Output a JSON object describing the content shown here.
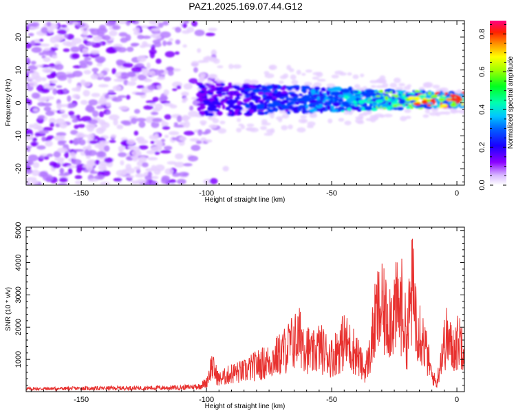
{
  "page_title": "PAZ1.2025.169.07.44.G12",
  "colors": {
    "snr_line": "#e8312f",
    "spectrogram_palette": [
      "#ffffff",
      "#e6d0ff",
      "#b57bff",
      "#7f00ff",
      "#2a00ff",
      "#0040ff",
      "#00b0ff",
      "#00ffc8",
      "#00ff40",
      "#80ff00",
      "#ffff00",
      "#ffa000",
      "#ff3000",
      "#ff0060",
      "#ff0090"
    ]
  },
  "chart_data": [
    {
      "type": "heatmap",
      "title": "PAZ1.2025.169.07.44.G12",
      "xlabel": "Height of straight line (km)",
      "ylabel": "Frequency (Hz)",
      "xlim": [
        -172,
        3
      ],
      "ylim": [
        -25,
        25
      ],
      "x_ticks": [
        "-150",
        "-100",
        "-50",
        "0"
      ],
      "y_ticks": [
        "-20",
        "-10",
        "0",
        "10",
        "20"
      ],
      "colorbar": {
        "label": "Normalized spectral amplitude",
        "range": [
          0,
          0.87
        ],
        "ticks": [
          "0.0",
          "0.2",
          "0.4",
          "0.6",
          "0.8"
        ]
      },
      "features": {
        "signal_band_center_hz": 1,
        "signal_band_halfwidth_hz": [
          5,
          2
        ],
        "signal_from_km": -103,
        "noise_region_to_km": -100,
        "max_amplitude_near_km": 0
      }
    },
    {
      "type": "line",
      "xlabel": "Height of straight line (km)",
      "ylabel": "SNR (10 * v/v)",
      "xlim": [
        -172,
        3
      ],
      "ylim": [
        0,
        5100
      ],
      "x_ticks": [
        "-150",
        "-100",
        "-50",
        "0"
      ],
      "y_ticks": [
        "1000",
        "2000",
        "3000",
        "4000",
        "5000"
      ],
      "series": [
        {
          "x": [
            -172,
            -160,
            -150,
            -140,
            -130,
            -120,
            -110,
            -103,
            -100,
            -98,
            -95,
            -90,
            -85,
            -80,
            -75,
            -70,
            -65,
            -62,
            -58,
            -55,
            -50,
            -45,
            -40,
            -37,
            -35,
            -32,
            -30,
            -28,
            -25,
            -22,
            -20,
            -18,
            -16,
            -14,
            -12,
            -10,
            -8,
            -6,
            -4,
            -2,
            0,
            2
          ],
          "y": [
            140,
            150,
            160,
            170,
            180,
            190,
            200,
            260,
            450,
            1300,
            600,
            900,
            1000,
            1300,
            1500,
            1900,
            2500,
            2700,
            1800,
            2200,
            1700,
            2500,
            1900,
            1000,
            1700,
            3900,
            4000,
            3600,
            4000,
            4200,
            2600,
            5000,
            3800,
            2800,
            1900,
            800,
            400,
            2000,
            2700,
            2100,
            2400,
            2600
          ]
        }
      ]
    }
  ]
}
